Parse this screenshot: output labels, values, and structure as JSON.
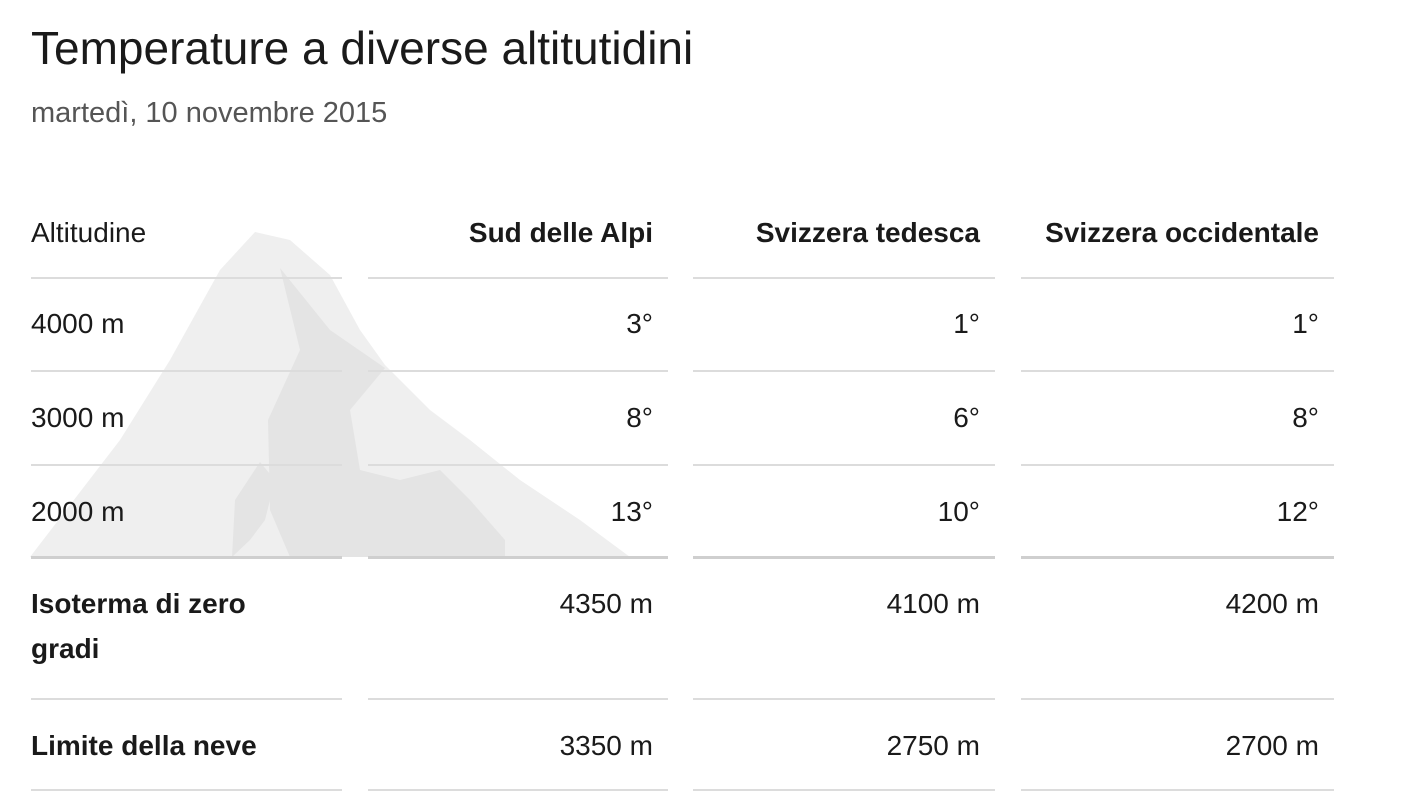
{
  "header": {
    "title": "Temperature a diverse altitutidini",
    "subtitle": "martedì, 10 novembre 2015"
  },
  "table": {
    "columns": [
      "Altitudine",
      "Sud delle Alpi",
      "Svizzera tedesca",
      "Svizzera occidentale"
    ],
    "rows": [
      [
        "4000 m",
        "3°",
        "1°",
        "1°"
      ],
      [
        "3000 m",
        "8°",
        "6°",
        "8°"
      ],
      [
        "2000 m",
        "13°",
        "10°",
        "12°"
      ],
      [
        "Isoterma di zero gradi",
        "4350 m",
        "4100 m",
        "4200 m"
      ],
      [
        "Limite della neve",
        "3350 m",
        "2750 m",
        "2700 m"
      ]
    ]
  }
}
